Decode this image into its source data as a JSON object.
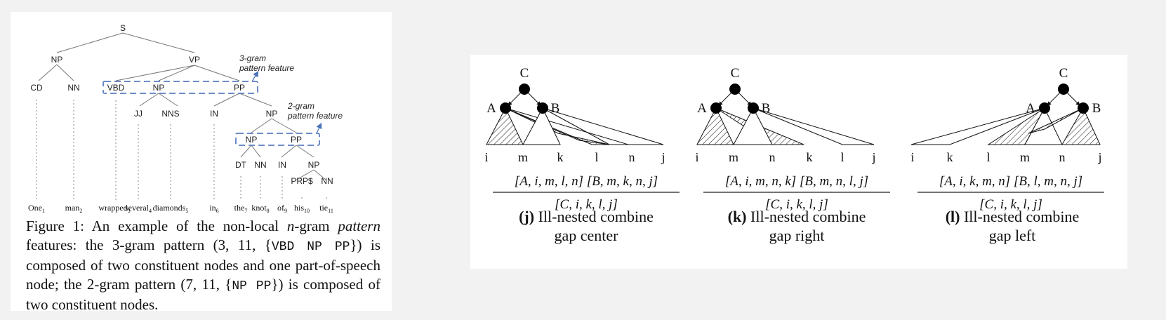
{
  "figure1": {
    "tree": {
      "root": "S",
      "np": "NP",
      "vp": "VP",
      "cd": "CD",
      "nn1": "NN",
      "vbd": "VBD",
      "np2": "NP",
      "pp": "PP",
      "jj": "JJ",
      "nns": "NNS",
      "in1": "IN",
      "np3": "NP",
      "np4": "NP",
      "pp2": "PP",
      "dt": "DT",
      "nn2": "NN",
      "in2": "IN",
      "np5": "NP",
      "prp": "PRP$",
      "nn3": "NN"
    },
    "words": [
      {
        "w": "One",
        "n": "1"
      },
      {
        "w": "man",
        "n": "2"
      },
      {
        "w": "wrapped",
        "n": "3"
      },
      {
        "w": "several",
        "n": "4"
      },
      {
        "w": "diamonds",
        "n": "5"
      },
      {
        "w": "in",
        "n": "6"
      },
      {
        "w": "the",
        "n": "7"
      },
      {
        "w": "knot",
        "n": "8"
      },
      {
        "w": "of",
        "n": "9"
      },
      {
        "w": "his",
        "n": "10"
      },
      {
        "w": "tie",
        "n": "11"
      }
    ],
    "note_3gram_line1": "3-gram",
    "note_3gram_line2": "pattern feature",
    "note_2gram_line1": "2-gram",
    "note_2gram_line2": "pattern feature",
    "caption": {
      "p1": "Figure 1:  An example of the non-local ",
      "n": "n",
      "p2": "-gram ",
      "pattern_it": "pattern",
      "p3": " features: the 3-gram pattern (3, 11, {",
      "code1": "VBD NP PP",
      "p4": "}) is composed of two constituent nodes and one part-of-speech node; the 2-gram pattern (7, 11, {",
      "code2": "NP PP",
      "p5": "}) is composed of two constituent nodes."
    }
  },
  "derivations": [
    {
      "top": "C",
      "left_node": "A",
      "right_node": "B",
      "indices": [
        "i",
        "m",
        "k",
        "l",
        "n",
        "j"
      ],
      "premise": "[A, i, m, l, n] [B, m, k, n, j]",
      "conclusion": "[C, i, k, l, j]",
      "label": "(j)",
      "title_line1": "Ill-nested combine",
      "title_line2": "gap center"
    },
    {
      "top": "C",
      "left_node": "A",
      "right_node": "B",
      "indices": [
        "i",
        "m",
        "n",
        "k",
        "l",
        "j"
      ],
      "premise": "[A, i, m, n, k] [B, m, n, l, j]",
      "conclusion": "[C, i, k, l, j]",
      "label": "(k)",
      "title_line1": "Ill-nested combine",
      "title_line2": "gap right"
    },
    {
      "top": "C",
      "left_node": "A",
      "right_node": "B",
      "indices": [
        "i",
        "k",
        "l",
        "m",
        "n",
        "j"
      ],
      "premise": "[A, i, k, m, n] [B, l, m, n, j]",
      "conclusion": "[C, i, k, l, j]",
      "label": "(l)",
      "title_line1": "Ill-nested combine",
      "title_line2": "gap left"
    }
  ]
}
